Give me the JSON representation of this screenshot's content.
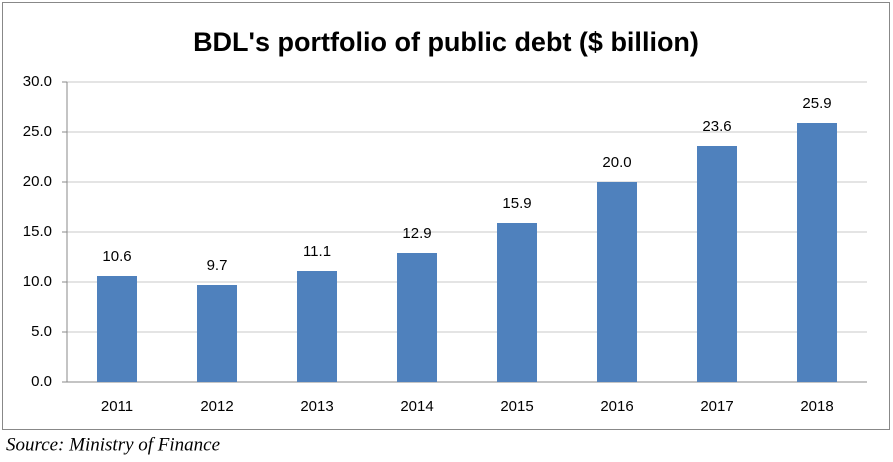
{
  "chart_data": {
    "type": "bar",
    "title": "BDL's portfolio of public debt ($ billion)",
    "categories": [
      "2011",
      "2012",
      "2013",
      "2014",
      "2015",
      "2016",
      "2017",
      "2018"
    ],
    "values": [
      10.6,
      9.7,
      11.1,
      12.9,
      15.9,
      20.0,
      23.6,
      25.9
    ],
    "value_labels": [
      "10.6",
      "9.7",
      "11.1",
      "12.9",
      "15.9",
      "20.0",
      "23.6",
      "25.9"
    ],
    "color": "#4f81bd",
    "ylim": [
      0,
      30
    ],
    "yticks": [
      {
        "value": 0,
        "label": "0.0"
      },
      {
        "value": 5,
        "label": "5.0"
      },
      {
        "value": 10,
        "label": "10.0"
      },
      {
        "value": 15,
        "label": "15.0"
      },
      {
        "value": 20,
        "label": "20.0"
      },
      {
        "value": 25,
        "label": "25.0"
      },
      {
        "value": 30,
        "label": "30.0"
      }
    ],
    "grid": true,
    "source": "Source: Ministry of Finance"
  }
}
